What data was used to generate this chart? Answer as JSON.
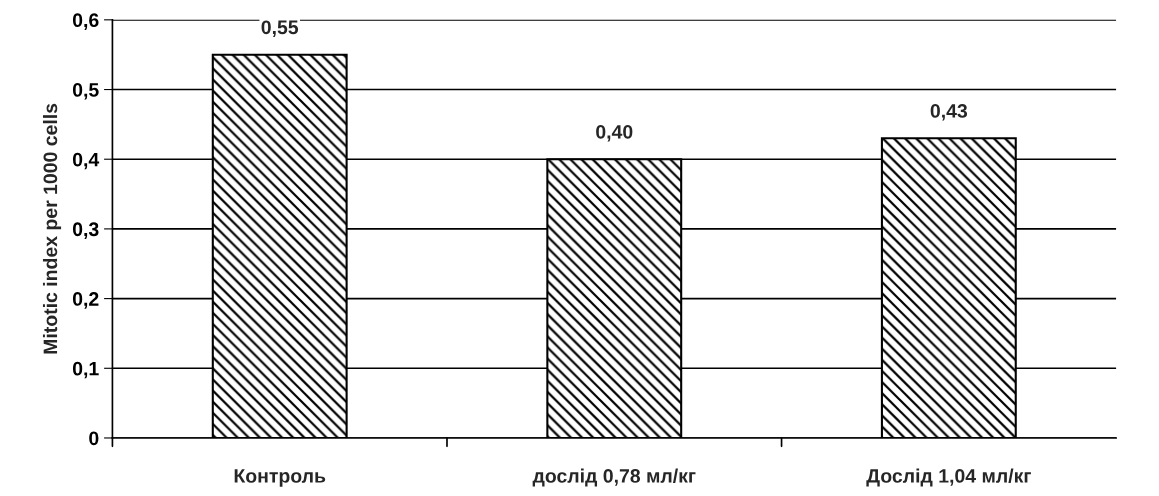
{
  "chart_data": {
    "type": "bar",
    "ylabel": "Mitotic index per 1000 cells",
    "categories": [
      "Контроль",
      "дослід 0,78 мл/кг",
      "Дослід 1,04 мл/кг"
    ],
    "values": [
      0.55,
      0.4,
      0.43
    ],
    "value_labels": [
      "0,55",
      "0,40",
      "0,43"
    ],
    "color": "#000000",
    "ylim": [
      0,
      0.6
    ],
    "yticks": [
      {
        "value": 0,
        "label": "0"
      },
      {
        "value": 0.1,
        "label": "0,1"
      },
      {
        "value": 0.2,
        "label": "0,2"
      },
      {
        "value": 0.3,
        "label": "0,3"
      },
      {
        "value": 0.4,
        "label": "0,4"
      },
      {
        "value": 0.5,
        "label": "0,5"
      },
      {
        "value": 0.6,
        "label": "0,6"
      }
    ],
    "grid": "y",
    "legend": false
  }
}
